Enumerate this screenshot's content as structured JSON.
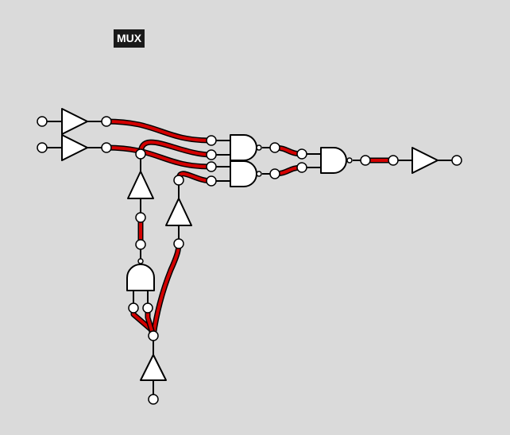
{
  "canvas": {
    "background": "#dadada"
  },
  "title": {
    "label": "MUX",
    "bg_color": "#1a1a1a"
  },
  "colors": {
    "active_wire": "#d40000",
    "wire_outline": "#000000",
    "gate_fill": "#ffffff"
  }
}
